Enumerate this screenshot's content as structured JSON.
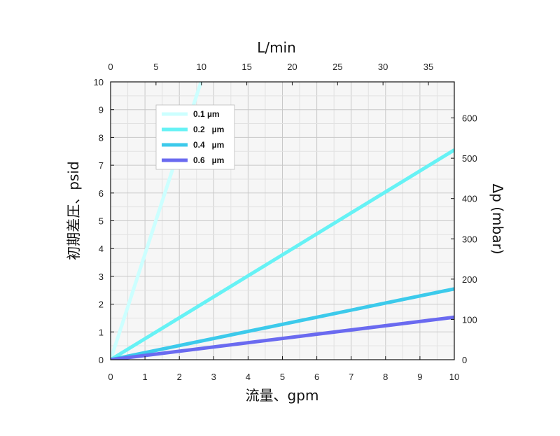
{
  "chart_data": {
    "type": "line",
    "x": [
      0,
      10
    ],
    "xlim": [
      0,
      10
    ],
    "ylim": [
      0,
      10
    ],
    "xticks": [
      0,
      1,
      2,
      3,
      4,
      5,
      6,
      7,
      8,
      9,
      10
    ],
    "yticks": [
      0,
      1,
      2,
      3,
      4,
      5,
      6,
      7,
      8,
      9,
      10
    ],
    "xlabel": "流量、gpm",
    "ylabel": "初期差圧、psid",
    "top_axis": {
      "label": "L/min",
      "lim": [
        0,
        37.85
      ],
      "ticks": [
        0,
        5,
        10,
        15,
        20,
        25,
        30,
        35
      ]
    },
    "right_axis": {
      "label": "Δp (mbar)",
      "lim": [
        0,
        689.5
      ],
      "ticks": [
        0,
        100,
        200,
        300,
        400,
        500,
        600
      ]
    },
    "series": [
      {
        "name": "0.1 µm",
        "color": "#ccffff",
        "values": [
          0,
          38.0
        ]
      },
      {
        "name": "0.2   µm",
        "color": "#66f2f5",
        "values": [
          0,
          7.55
        ]
      },
      {
        "name": "0.4   µm",
        "color": "#3ccaeb",
        "values": [
          0,
          2.55
        ]
      },
      {
        "name": "0.6   µm",
        "color": "#6a6af0",
        "values": [
          0,
          1.53
        ]
      }
    ],
    "grid": true,
    "legend_position": "top-left"
  }
}
